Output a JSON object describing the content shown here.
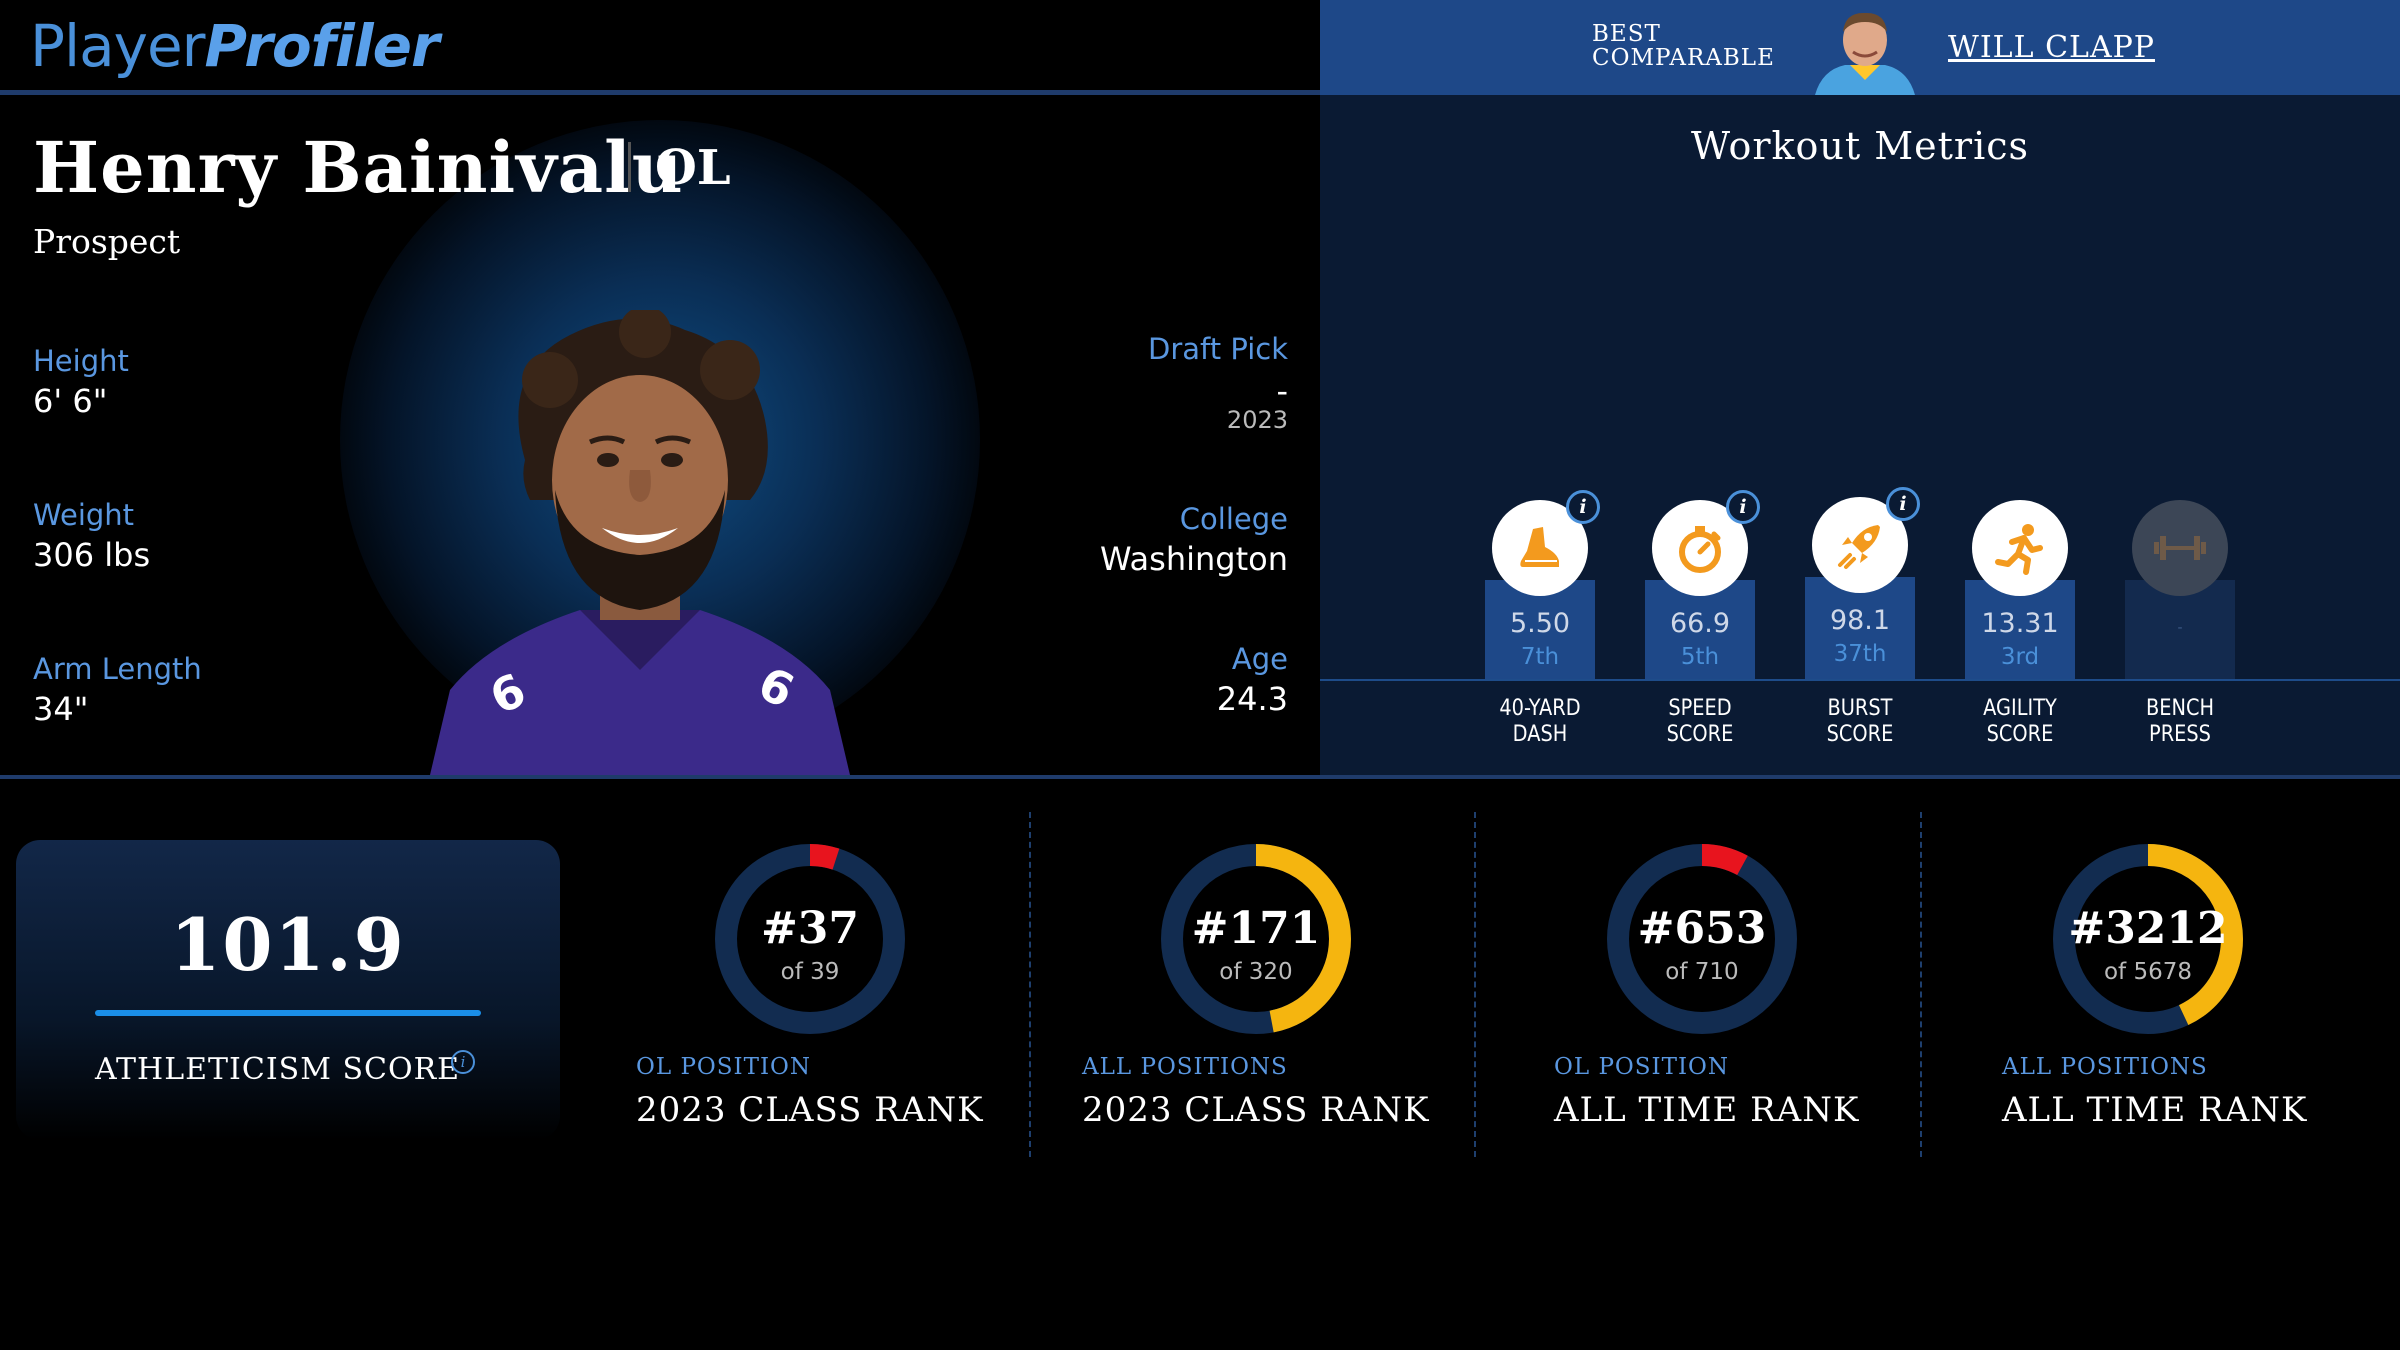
{
  "header": {
    "logo_part1": "Player",
    "logo_part2": "Profiler",
    "best_comparable_line1": "BEST",
    "best_comparable_line2": "COMPARABLE",
    "best_comparable_name": "WILL CLAPP"
  },
  "player": {
    "name": "Henry Bainivalu",
    "position": "OL",
    "status": "Prospect",
    "height_label": "Height",
    "height": "6' 6\"",
    "weight_label": "Weight",
    "weight": "306 lbs",
    "arm_label": "Arm Length",
    "arm": "34\"",
    "draft_label": "Draft Pick",
    "draft_pick": "-",
    "draft_year": "2023",
    "college_label": "College",
    "college": "Washington",
    "age_label": "Age",
    "age": "24.3"
  },
  "workout": {
    "title": "Workout Metrics",
    "metrics": [
      {
        "name_line1": "40-YARD",
        "name_line2": "DASH",
        "value": "5.50",
        "rank": "7th",
        "icon": "shoe-icon",
        "has_info": true,
        "percentile": 0.3
      },
      {
        "name_line1": "SPEED",
        "name_line2": "SCORE",
        "value": "66.9",
        "rank": "5th",
        "icon": "stopwatch-icon",
        "has_info": true,
        "percentile": 0.3
      },
      {
        "name_line1": "BURST",
        "name_line2": "SCORE",
        "value": "98.1",
        "rank": "37th",
        "icon": "rocket-icon",
        "has_info": true,
        "percentile": 0.43
      },
      {
        "name_line1": "AGILITY",
        "name_line2": "SCORE",
        "value": "13.31",
        "rank": "3rd",
        "icon": "runner-icon",
        "has_info": false,
        "percentile": 0.3
      },
      {
        "name_line1": "BENCH",
        "name_line2": "PRESS",
        "value": "-",
        "rank": "",
        "icon": "barbell-icon",
        "has_info": false,
        "percentile": 0.3
      }
    ]
  },
  "athleticism": {
    "score": "101.9",
    "label": "ATHLETICISM SCORE"
  },
  "ranks": [
    {
      "rank": "#37",
      "of": "of 39",
      "sub": "OL POSITION",
      "main": "2023 CLASS RANK",
      "fraction": 0.05,
      "color": "#e8141e"
    },
    {
      "rank": "#171",
      "of": "of 320",
      "sub": "ALL POSITIONS",
      "main": "2023 CLASS RANK",
      "fraction": 0.47,
      "color": "#f5b50f"
    },
    {
      "rank": "#653",
      "of": "of 710",
      "sub": "OL POSITION",
      "main": "ALL TIME RANK",
      "fraction": 0.08,
      "color": "#e8141e"
    },
    {
      "rank": "#3212",
      "of": "of 5678",
      "sub": "ALL POSITIONS",
      "main": "ALL TIME RANK",
      "fraction": 0.43,
      "color": "#f5b50f"
    }
  ],
  "colors": {
    "accent_blue": "#4a90d9",
    "header_blue": "#1e4888",
    "ring_track": "#122c50",
    "icon_orange": "#f39a1e"
  }
}
